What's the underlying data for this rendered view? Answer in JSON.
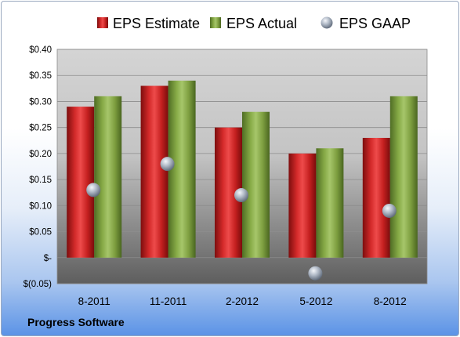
{
  "company": "Progress Software",
  "chart_data": {
    "type": "bar",
    "categories": [
      "8-2011",
      "11-2011",
      "2-2012",
      "5-2012",
      "8-2012"
    ],
    "series": [
      {
        "name": "EPS Estimate",
        "kind": "bar",
        "color": "#c0201f",
        "values": [
          0.29,
          0.33,
          0.25,
          0.2,
          0.23
        ]
      },
      {
        "name": "EPS Actual",
        "kind": "bar",
        "color": "#8aae4a",
        "values": [
          0.31,
          0.34,
          0.28,
          0.21,
          0.31
        ]
      },
      {
        "name": "EPS GAAP",
        "kind": "marker",
        "color": "#a9b4c2",
        "values": [
          0.13,
          0.18,
          0.12,
          -0.03,
          0.09
        ]
      }
    ],
    "ylim": [
      -0.05,
      0.4
    ],
    "yticks": [
      -0.05,
      0.0,
      0.05,
      0.1,
      0.15,
      0.2,
      0.25,
      0.3,
      0.35,
      0.4
    ],
    "ytick_labels": [
      "$(0.05)",
      "$-",
      "$0.05",
      "$0.10",
      "$0.15",
      "$0.20",
      "$0.25",
      "$0.30",
      "$0.35",
      "$0.40"
    ],
    "grid": true,
    "legend_position": "top"
  }
}
